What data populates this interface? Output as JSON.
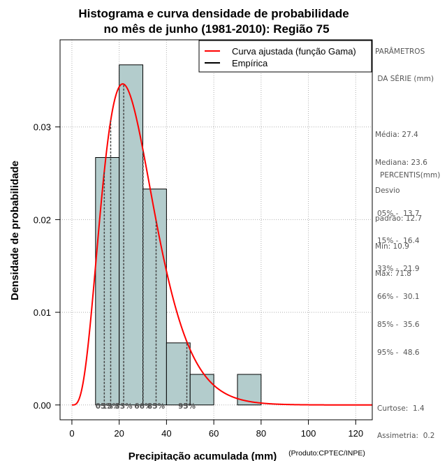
{
  "chart_data": {
    "type": "bar",
    "title_line1": "Histograma e curva densidade de probabilidade",
    "title_line2": "no mês de junho (1981-2010): Região 75",
    "xlabel": "Precipitação acumulada (mm)",
    "ylabel": "Densidade de probabilidade",
    "credit": "(Produto:CPTEC/INPE)",
    "xlim": [
      -5,
      127
    ],
    "ylim": [
      -0.0016,
      0.0394
    ],
    "xticks": [
      0,
      20,
      40,
      60,
      80,
      100,
      120
    ],
    "yticks": [
      0.0,
      0.01,
      0.02,
      0.03
    ],
    "ytick_labels": [
      "0.00",
      "0.01",
      "0.02",
      "0.03"
    ],
    "grid": true,
    "legend_position": "top-right",
    "legend": [
      {
        "label": "Curva ajustada (função Gama)",
        "color": "#ff0000"
      },
      {
        "label": "Empírica",
        "color": "#000000"
      }
    ],
    "bar_fill": "#b3cccc",
    "bins": [
      {
        "x0": 10,
        "x1": 20,
        "value": 0.0267
      },
      {
        "x0": 20,
        "x1": 30,
        "value": 0.0367
      },
      {
        "x0": 30,
        "x1": 40,
        "value": 0.0233
      },
      {
        "x0": 40,
        "x1": 50,
        "value": 0.0067
      },
      {
        "x0": 50,
        "x1": 60,
        "value": 0.0033
      },
      {
        "x0": 60,
        "x1": 70,
        "value": 0.0
      },
      {
        "x0": 70,
        "x1": 80,
        "value": 0.0033
      }
    ],
    "gamma_fit": {
      "shape": 4.64,
      "scale": 5.9,
      "x_from": 0,
      "x_to": 127,
      "color": "#ff0000"
    },
    "percentile_lines": [
      {
        "label": "05%",
        "x": 13.7
      },
      {
        "label": "15%",
        "x": 16.4
      },
      {
        "label": "33%",
        "x": 21.9
      },
      {
        "label": "66%",
        "x": 30.1
      },
      {
        "label": "85%",
        "x": 35.6
      },
      {
        "label": "95%",
        "x": 48.6
      }
    ]
  },
  "params": {
    "heading_line1": "PARÂMETROS",
    "heading_line2": " DA SÉRIE (mm)",
    "lines": [
      "Média: 27.4",
      "Mediana: 23.6",
      "Desvio",
      "padrão: 12.7",
      "Mín: 10.9",
      "Máx: 71.8"
    ]
  },
  "percentis": {
    "heading": "PERCENTIS(mm)",
    "lines": [
      "05% -  13.7",
      "15% -  16.4",
      "33% -  21.9",
      "66% -  30.1",
      "85% -  35.6",
      "95% -  48.6"
    ]
  },
  "shape_stats": {
    "lines": [
      "Curtose:  1.4",
      "Assimetria:  0.2"
    ]
  }
}
